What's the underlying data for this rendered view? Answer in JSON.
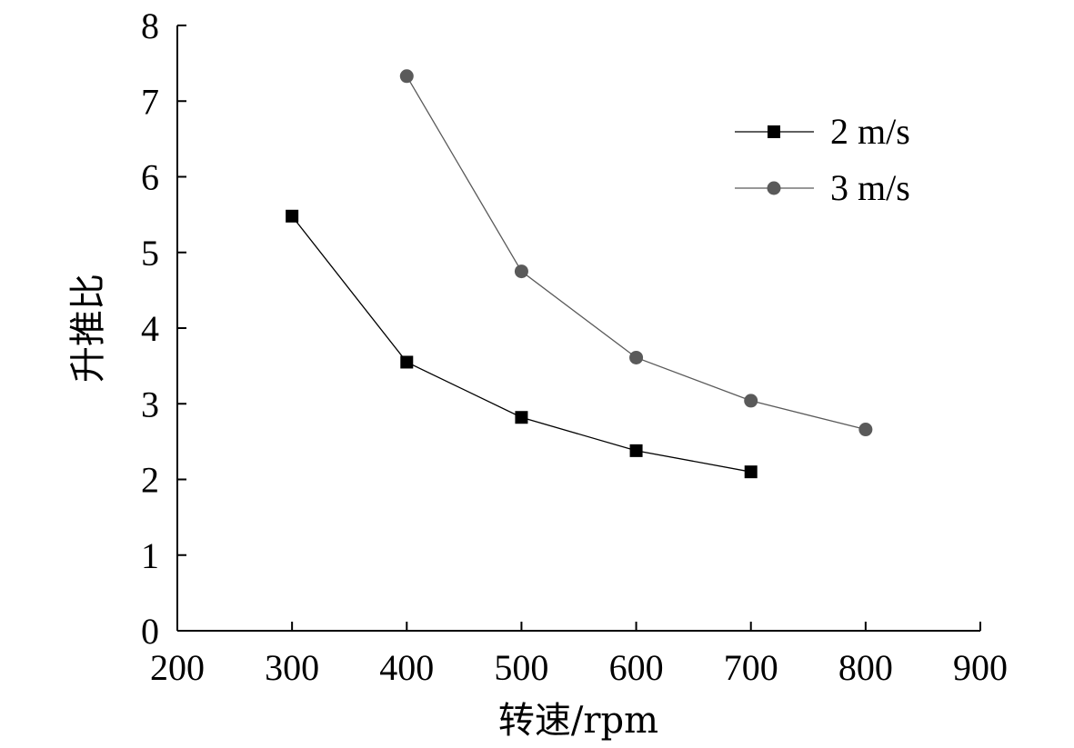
{
  "chart_data": {
    "type": "line",
    "title": "",
    "xlabel": "转速/rpm",
    "ylabel": "升推比",
    "xlim": [
      200,
      900
    ],
    "ylim": [
      0,
      8
    ],
    "xticks": [
      200,
      300,
      400,
      500,
      600,
      700,
      800,
      900
    ],
    "yticks": [
      0,
      1,
      2,
      3,
      4,
      5,
      6,
      7,
      8
    ],
    "grid": false,
    "legend_position": "top-right",
    "series": [
      {
        "name": "2 m/s",
        "marker": "square",
        "color": "#000000",
        "x": [
          300,
          400,
          500,
          600,
          700
        ],
        "y": [
          5.48,
          3.55,
          2.82,
          2.38,
          2.1
        ]
      },
      {
        "name": "3 m/s",
        "marker": "circle",
        "color": "#5a5a5a",
        "x": [
          400,
          500,
          600,
          700,
          800
        ],
        "y": [
          7.33,
          4.75,
          3.61,
          3.04,
          2.66
        ]
      }
    ]
  }
}
